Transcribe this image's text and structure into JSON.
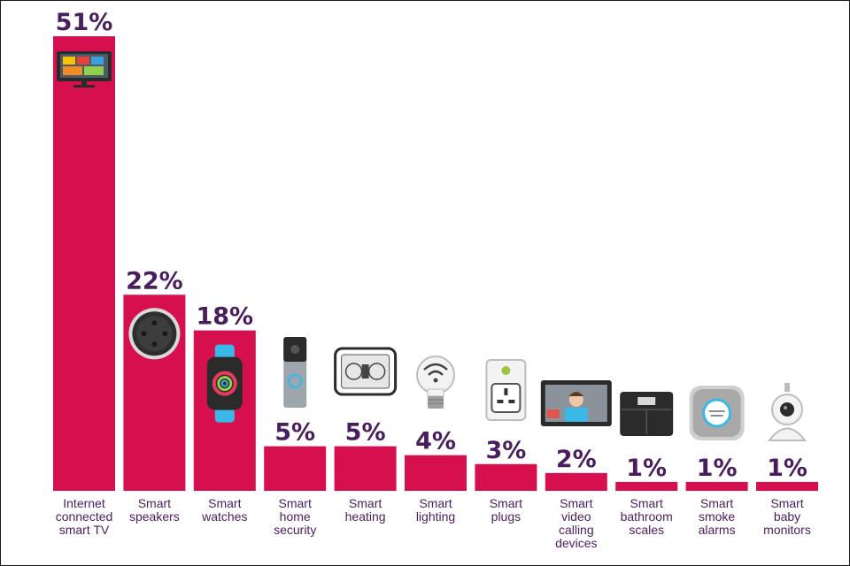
{
  "chart_data": {
    "type": "bar",
    "title": "",
    "xlabel": "",
    "ylabel": "",
    "ylim": [
      0,
      51
    ],
    "grid": false,
    "categories": [
      [
        "Internet",
        "connected",
        "smart TV"
      ],
      [
        "Smart",
        "speakers"
      ],
      [
        "Smart",
        "watches"
      ],
      [
        "Smart",
        "home",
        "security"
      ],
      [
        "Smart",
        "heating"
      ],
      [
        "Smart",
        "lighting"
      ],
      [
        "Smart",
        "plugs"
      ],
      [
        "Smart",
        "video",
        "calling",
        "devices"
      ],
      [
        "Smart",
        "bathroom",
        "scales"
      ],
      [
        "Smart",
        "smoke",
        "alarms"
      ],
      [
        "Smart",
        "baby",
        "monitors"
      ]
    ],
    "values": [
      51,
      22,
      18,
      5,
      5,
      4,
      3,
      2,
      1,
      1,
      1
    ],
    "value_labels": [
      "51%",
      "22%",
      "18%",
      "5%",
      "5%",
      "4%",
      "3%",
      "2%",
      "1%",
      "1%",
      "1%"
    ],
    "bar_color": "#d6104f",
    "label_color": "#4a1d5e",
    "icons": [
      "smart-tv-icon",
      "smart-speaker-icon",
      "smart-watch-icon",
      "video-doorbell-icon",
      "thermostat-icon",
      "wifi-bulb-icon",
      "smart-plug-icon",
      "video-calling-device-icon",
      "bathroom-scale-icon",
      "smoke-alarm-icon",
      "baby-monitor-icon"
    ]
  }
}
